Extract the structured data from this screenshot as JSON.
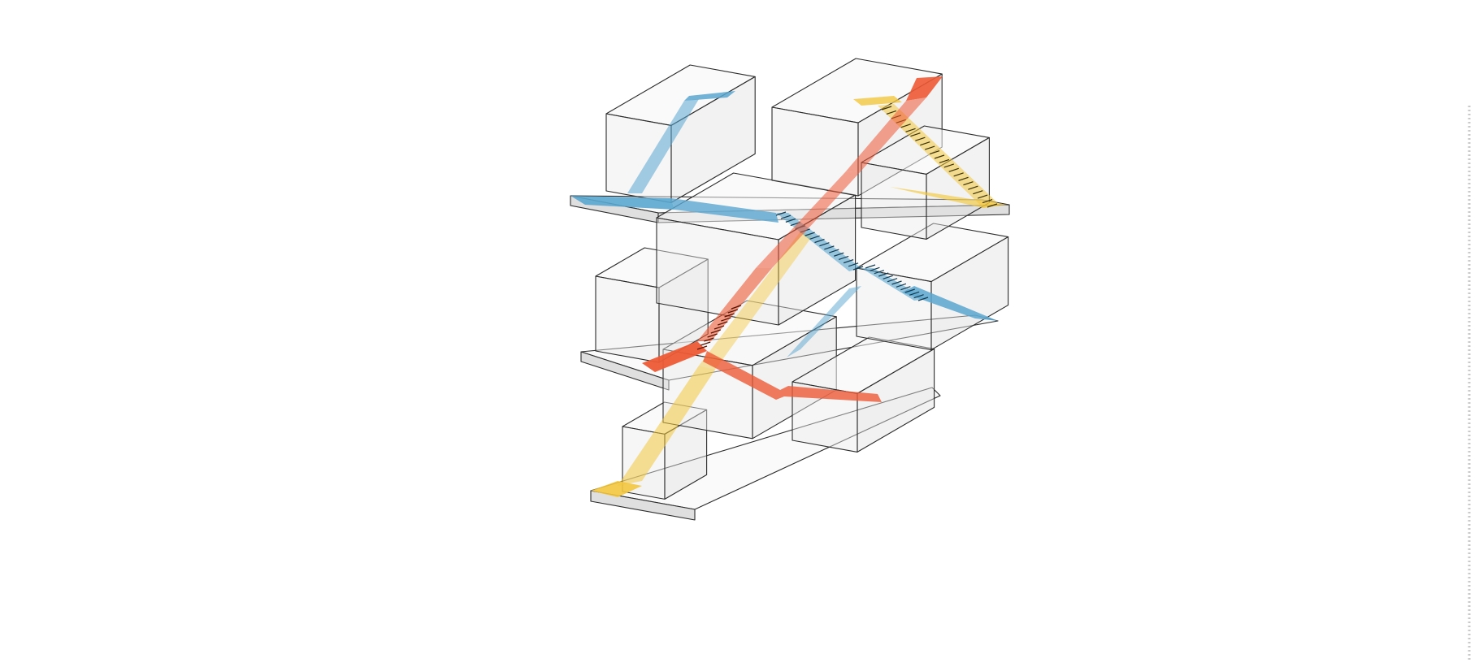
{
  "diagram": {
    "style": "axonometric-circulation",
    "colors": {
      "background": "#ffffff",
      "outline": "#2b2b2b",
      "box_top": "#f6f6f6",
      "box_left": "#ececec",
      "box_right": "#e2e2e2",
      "slab_top": "#f9f9f9",
      "slab_side": "#dcdcdc",
      "path_blue": "#5aa6cf",
      "path_red": "#ee5a36",
      "path_yellow": "#f2c73e"
    },
    "circulation_paths": [
      "blue",
      "red",
      "yellow"
    ]
  }
}
